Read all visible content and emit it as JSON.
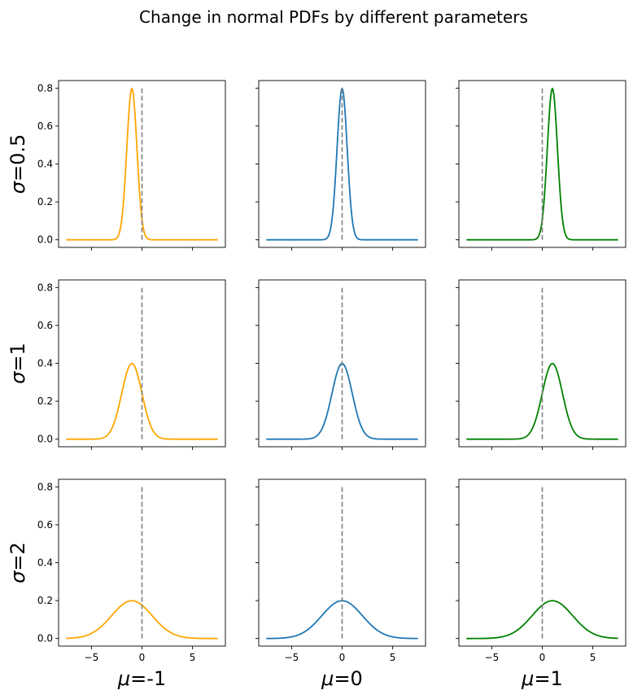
{
  "chart_data": {
    "type": "line",
    "title": "Change in normal PDFs by different parameters",
    "x_range": [
      -7.5,
      7.5
    ],
    "xlim": [
      -8.25,
      8.25
    ],
    "ylim": [
      -0.04,
      0.84
    ],
    "x_ticks": [
      -5,
      0,
      5
    ],
    "y_ticks": [
      0.0,
      0.2,
      0.4,
      0.6,
      0.8
    ],
    "x_tick_labels": [
      "−5",
      "0",
      "5"
    ],
    "y_tick_labels": [
      "0.0",
      "0.2",
      "0.4",
      "0.6",
      "0.8"
    ],
    "reference_line": {
      "x": 0,
      "y_range": [
        0,
        0.8
      ],
      "color": "#808080",
      "style": "dashed"
    },
    "grid": false,
    "mu_values": [
      -1,
      0,
      1
    ],
    "sigma_values": [
      0.5,
      1,
      2
    ],
    "column_labels": [
      {
        "symbol": "μ",
        "text": "=-1"
      },
      {
        "symbol": "μ",
        "text": "=0"
      },
      {
        "symbol": "μ",
        "text": "=1"
      }
    ],
    "row_labels": [
      {
        "symbol": "σ",
        "text": "=0.5"
      },
      {
        "symbol": "σ",
        "text": "=1"
      },
      {
        "symbol": "σ",
        "text": "=2"
      }
    ],
    "column_colors": [
      "#ffa500",
      "#1f77b4",
      "#008000"
    ]
  }
}
